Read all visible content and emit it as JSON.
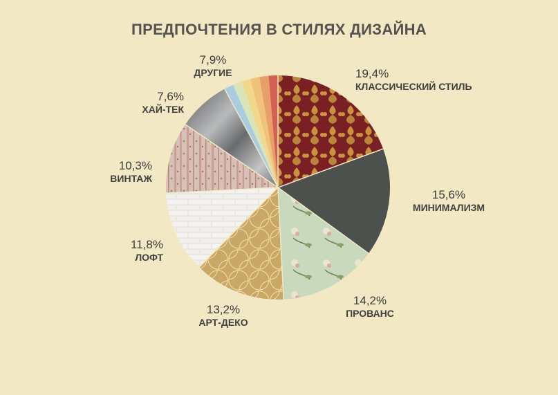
{
  "chart_data": {
    "type": "pie",
    "title": "ПРЕДПОЧТЕНИЯ В СТИЛЯХ ДИЗАЙНА",
    "slices": [
      {
        "name": "КЛАССИЧЕСКИЙ СТИЛЬ",
        "value": 19.4,
        "label": "19,4%",
        "color": "#7a1f24"
      },
      {
        "name": "МИНИМАЛИЗМ",
        "value": 15.6,
        "label": "15,6%",
        "color": "#4c514d"
      },
      {
        "name": "ПРОВАНС",
        "value": 14.2,
        "label": "14,2%",
        "color": "#c8d8bd"
      },
      {
        "name": "АРТ-ДЕКО",
        "value": 13.2,
        "label": "13,2%",
        "color": "#c9a764"
      },
      {
        "name": "ЛОФТ",
        "value": 11.8,
        "label": "11,8%",
        "color": "#e6e4df"
      },
      {
        "name": "ВИНТАЖ",
        "value": 10.3,
        "label": "10,3%",
        "color": "#d9c1b8"
      },
      {
        "name": "ХАЙ-ТЕК",
        "value": 7.6,
        "label": "7,6%",
        "color": "#8e8e90"
      },
      {
        "name": "ДРУГИЕ",
        "value": 7.9,
        "label": "7,9%",
        "color": "#e9b96a"
      }
    ],
    "others_stripe_colors": [
      "#a8cde0",
      "#d9e5b8",
      "#f1d88b",
      "#efc37b",
      "#e8a06a",
      "#d35f55"
    ]
  }
}
